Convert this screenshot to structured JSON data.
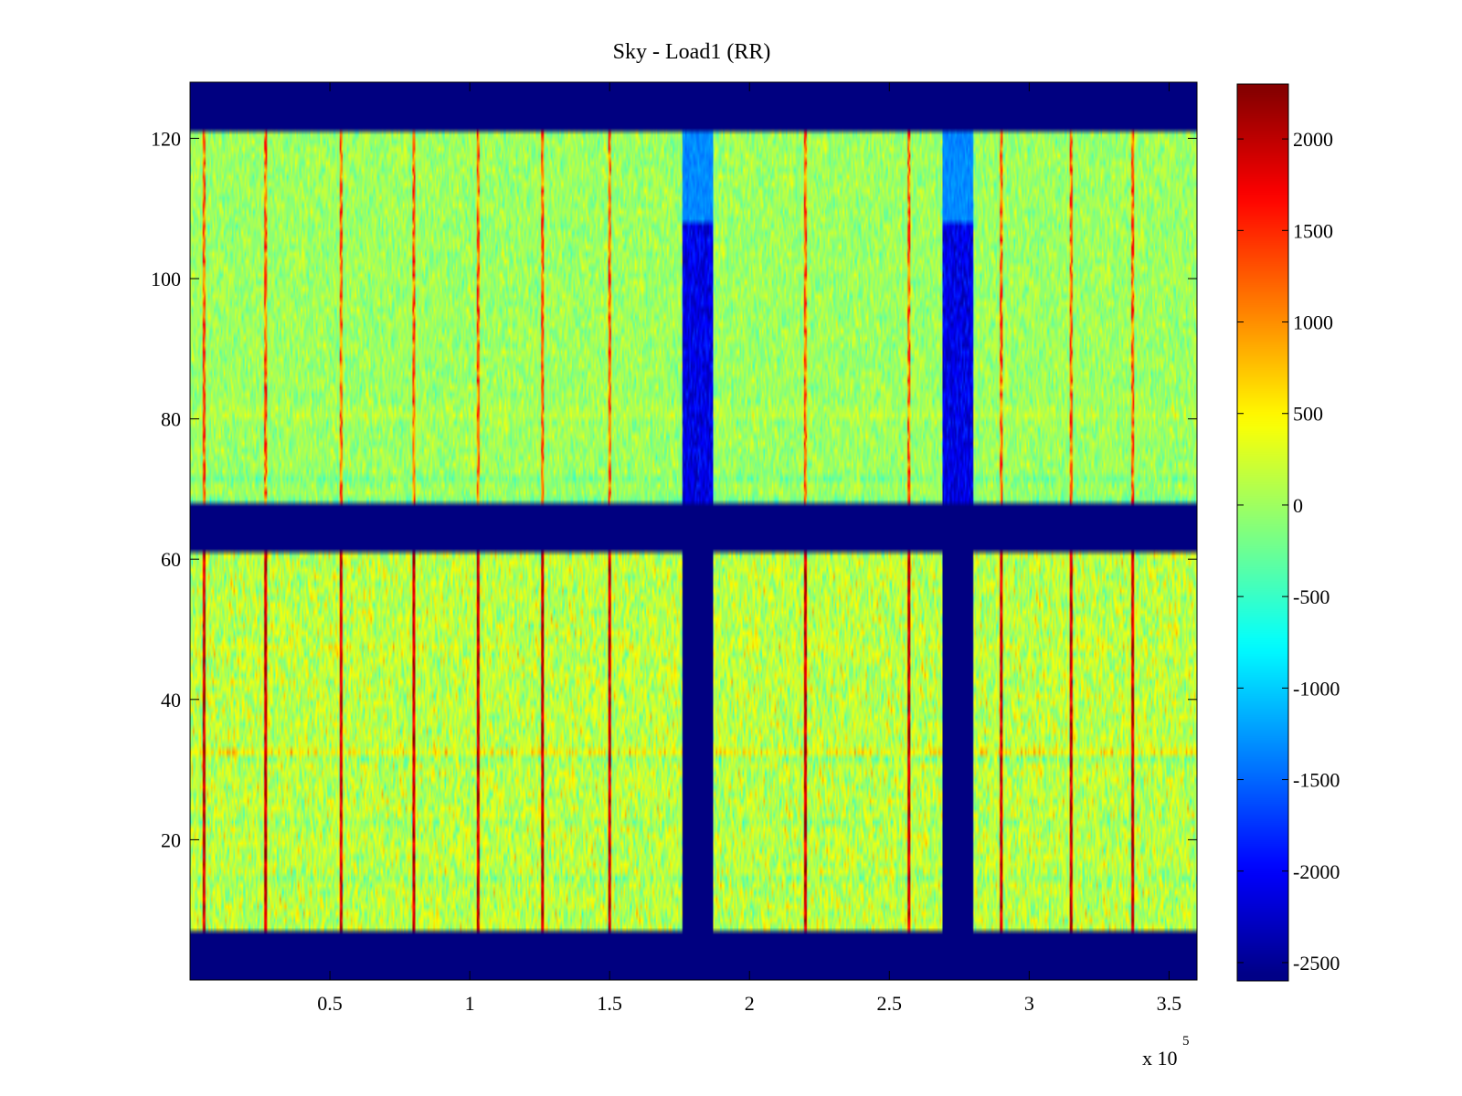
{
  "chart_data": {
    "type": "heatmap",
    "title": "Sky - Load1 (RR)",
    "xlabel": "",
    "ylabel": "",
    "x_exponent_label": "x 10",
    "x_exponent_power": "5",
    "xlim": [
      0,
      360000
    ],
    "ylim": [
      0,
      128
    ],
    "x_ticks": [
      50000,
      100000,
      150000,
      200000,
      250000,
      300000,
      350000
    ],
    "x_tick_labels": [
      "0.5",
      "1",
      "1.5",
      "2",
      "2.5",
      "3",
      "3.5"
    ],
    "y_ticks": [
      20,
      40,
      60,
      80,
      100,
      120
    ],
    "y_tick_labels": [
      "20",
      "40",
      "60",
      "80",
      "100",
      "120"
    ],
    "colormap": "jet",
    "clim": [
      -2600,
      2300
    ],
    "colorbar_ticks": [
      2000,
      1500,
      1000,
      500,
      0,
      -500,
      -1000,
      -1500,
      -2000,
      -2500
    ],
    "colorbar_tick_labels": [
      "2000",
      "1500",
      "1000",
      "500",
      "0",
      "-500",
      "-1000",
      "-1500",
      "-2000",
      "-2500"
    ],
    "masked_value": -2600,
    "masked_row_bands": [
      [
        0,
        7.5
      ],
      [
        61.5,
        68.5
      ],
      [
        121.5,
        128
      ]
    ],
    "masked_column_bands": [
      {
        "x": [
          176000,
          187000
        ],
        "y": [
          7.5,
          61.5
        ]
      },
      {
        "x": [
          269000,
          280000
        ],
        "y": [
          7.5,
          61.5
        ]
      }
    ],
    "depressed_column_bands": [
      {
        "x": [
          176000,
          187000
        ],
        "y": [
          68.5,
          121.5
        ],
        "min_value": -2400
      },
      {
        "x": [
          269000,
          280000
        ],
        "y": [
          68.5,
          121.5
        ],
        "min_value": -2400
      }
    ],
    "vertical_spike_columns_x": [
      5000,
      27000,
      54000,
      80000,
      103000,
      126000,
      150000,
      220000,
      257000,
      290000,
      315000,
      337000
    ],
    "region_typical_level": {
      "upper_block": 0,
      "lower_block": 150
    }
  }
}
